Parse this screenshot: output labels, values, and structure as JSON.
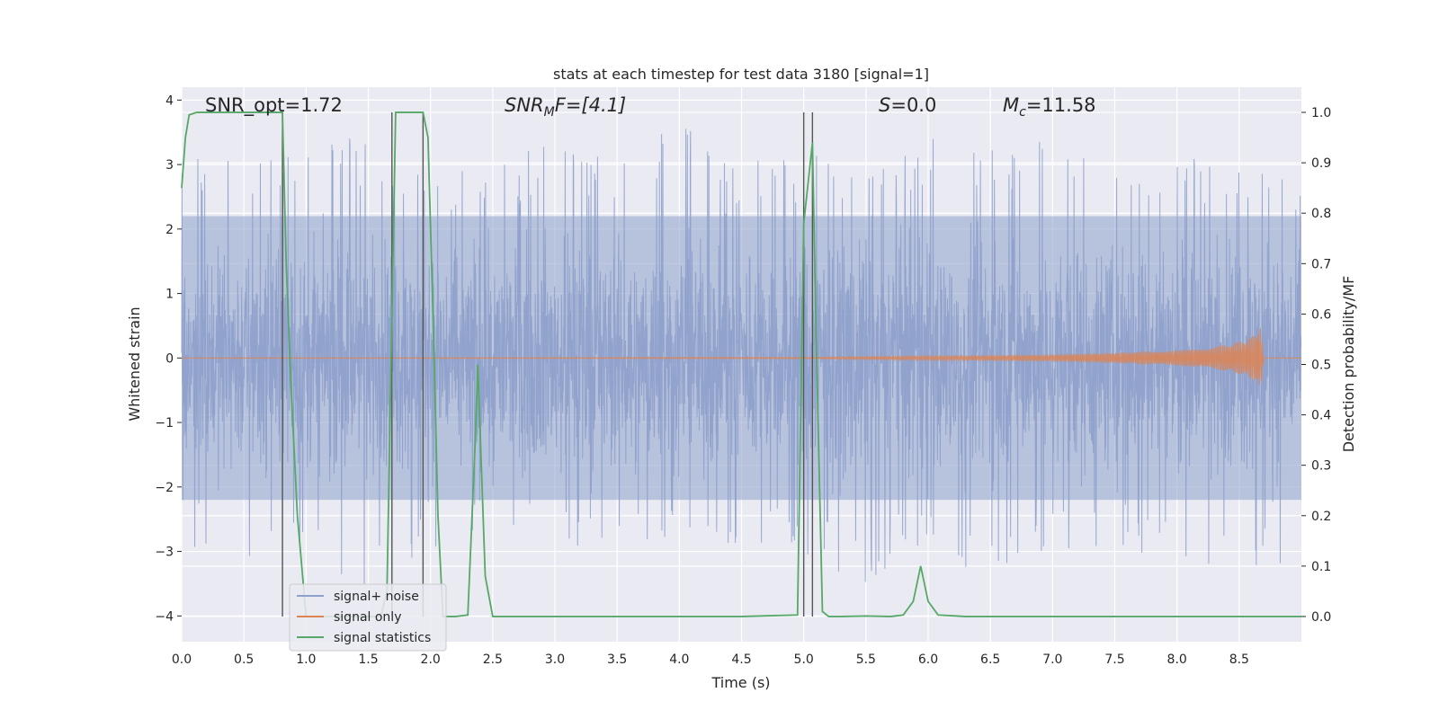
{
  "chart_data": {
    "type": "line",
    "title": "stats at each timestep for test data 3180 [signal=1]",
    "xlabel": "Time (s)",
    "ylabel_left": "Whitened strain",
    "ylabel_right": "Detection probability/MF",
    "xlim": [
      0,
      9
    ],
    "ylim_left": [
      -4.4,
      4.2
    ],
    "ylim_right": [
      -0.05,
      1.05
    ],
    "x_ticks": [
      "0.0",
      "0.5",
      "1.0",
      "1.5",
      "2.0",
      "2.5",
      "3.0",
      "3.5",
      "4.0",
      "4.5",
      "5.0",
      "5.5",
      "6.0",
      "6.5",
      "7.0",
      "7.5",
      "8.0",
      "8.5"
    ],
    "y_ticks_left": [
      "4",
      "3",
      "2",
      "1",
      "0",
      "−1",
      "−2",
      "−3",
      "−4"
    ],
    "y_ticks_right": [
      "1.0",
      "0.9",
      "0.8",
      "0.7",
      "0.6",
      "0.5",
      "0.4",
      "0.3",
      "0.2",
      "0.1",
      "0.0"
    ],
    "grid": true,
    "background": "#eaeaf2",
    "annotations": {
      "snr_opt": "SNR_opt=1.72",
      "snr_mf_base": "SNR",
      "snr_mf_sub": "M",
      "snr_mf_rest": "F=[4.1]",
      "s_var": "S",
      "s_rest": "=0.0",
      "mc_base": "M",
      "mc_sub": "c",
      "mc_rest": "=11.58"
    },
    "vertical_lines_x": [
      0.81,
      1.69,
      1.94,
      5.0,
      5.07
    ],
    "series": [
      {
        "name": "signal+ noise",
        "color": "#8da0cb",
        "axis": "left",
        "envelope": {
          "x": [
            0.0,
            0.5,
            1.0,
            1.5,
            2.0,
            2.5,
            3.0,
            3.5,
            4.0,
            4.5,
            5.0,
            5.5,
            6.0,
            6.5,
            7.0,
            7.5,
            8.0,
            8.5,
            9.0
          ],
          "upper": [
            3.4,
            3.1,
            3.2,
            3.6,
            3.2,
            3.0,
            3.4,
            3.1,
            3.8,
            3.1,
            3.2,
            2.9,
            3.4,
            3.4,
            3.4,
            3.2,
            3.1,
            3.3,
            3.3
          ],
          "lower": [
            -2.8,
            -3.5,
            -3.2,
            -3.6,
            -3.1,
            -2.6,
            -2.8,
            -3.3,
            -2.9,
            -3.0,
            -3.1,
            -3.5,
            -3.0,
            -3.4,
            -3.0,
            -3.0,
            -3.1,
            -3.4,
            -3.3
          ]
        }
      },
      {
        "name": "signal only",
        "color": "#dd8452",
        "axis": "left",
        "envelope": {
          "x": [
            0.0,
            5.0,
            6.0,
            7.0,
            7.5,
            8.0,
            8.3,
            8.5,
            8.6,
            8.67,
            8.7,
            9.0
          ],
          "amp": [
            0.0,
            0.01,
            0.03,
            0.05,
            0.08,
            0.12,
            0.17,
            0.25,
            0.32,
            0.48,
            0.0,
            0.0
          ]
        }
      },
      {
        "name": "signal statistics",
        "color": "#55a868",
        "axis": "right",
        "x": [
          0.0,
          0.03,
          0.06,
          0.12,
          0.2,
          0.3,
          0.5,
          0.7,
          0.78,
          0.81,
          0.84,
          0.88,
          0.93,
          1.0,
          1.1,
          1.3,
          1.5,
          1.6,
          1.65,
          1.69,
          1.72,
          1.76,
          1.8,
          1.9,
          1.94,
          1.98,
          2.02,
          2.06,
          2.1,
          2.2,
          2.3,
          2.36,
          2.38,
          2.44,
          2.5,
          3.0,
          3.5,
          4.0,
          4.5,
          4.95,
          5.0,
          5.07,
          5.1,
          5.15,
          5.2,
          5.3,
          5.5,
          5.7,
          5.8,
          5.88,
          5.94,
          6.0,
          6.08,
          6.3,
          6.5,
          7.0,
          7.5,
          8.0,
          8.5,
          9.0
        ],
        "y": [
          0.85,
          0.95,
          0.995,
          1.0,
          1.0,
          1.0,
          1.0,
          1.0,
          1.0,
          1.0,
          0.7,
          0.45,
          0.2,
          0.0,
          0.0,
          0.0,
          0.0,
          0.0,
          0.05,
          0.6,
          1.0,
          1.0,
          1.0,
          1.0,
          1.0,
          0.95,
          0.6,
          0.2,
          0.0,
          0.0,
          0.003,
          0.35,
          0.5,
          0.08,
          0.0,
          0.0,
          0.0,
          0.0,
          0.0,
          0.003,
          0.78,
          0.94,
          0.55,
          0.01,
          0.0,
          0.0,
          0.001,
          0.0,
          0.003,
          0.03,
          0.1,
          0.03,
          0.003,
          0.0,
          0.0,
          0.0,
          0.0,
          0.0,
          0.0,
          0.0
        ]
      }
    ],
    "legend": {
      "placement": "lower-left",
      "entries": [
        "signal+ noise",
        "signal only",
        "signal statistics"
      ]
    }
  }
}
